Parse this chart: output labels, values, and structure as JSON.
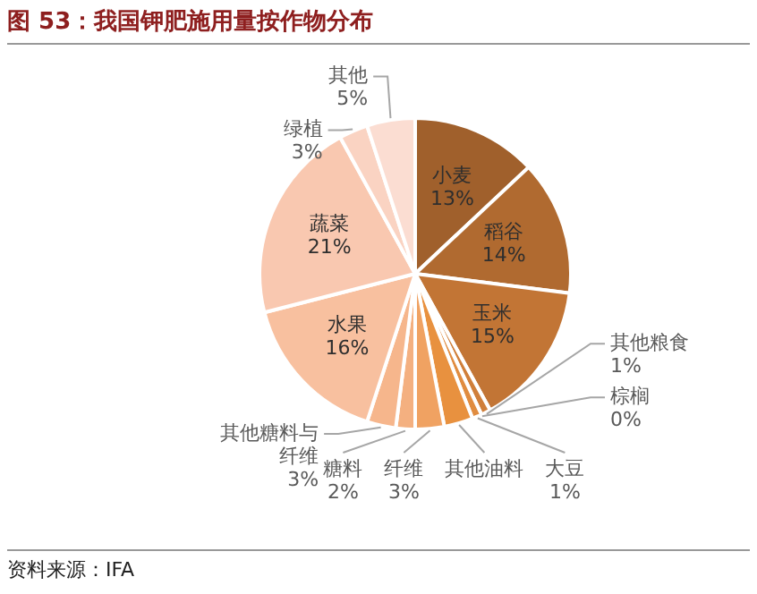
{
  "chart_data": {
    "type": "pie",
    "title": "图 53：我国钾肥施用量按作物分布",
    "categories": [
      "小麦",
      "稻谷",
      "玉米",
      "其他粮食",
      "棕榈",
      "大豆",
      "其他油料",
      "纤维",
      "糖料",
      "其他糖料与纤维",
      "水果",
      "蔬菜",
      "绿植",
      "其他"
    ],
    "values": [
      13,
      14,
      15,
      1,
      0,
      1,
      3,
      3,
      2,
      3,
      16,
      21,
      3,
      5
    ],
    "colors": [
      "#a0602c",
      "#b06a30",
      "#c27535",
      "#d07f3a",
      "#da8840",
      "#e08c40",
      "#e8913f",
      "#f0a262",
      "#f4b080",
      "#f6b68c",
      "#f8c09f",
      "#f9c8b0",
      "#fad3c2",
      "#fbddd2"
    ],
    "value_labels": [
      "13%",
      "14%",
      "15%",
      "1%",
      "0%",
      "1%",
      null,
      "3%",
      "2%",
      "3%",
      "16%",
      "21%",
      "3%",
      "5%"
    ],
    "annotations": [
      "资料来源：IFA"
    ]
  }
}
